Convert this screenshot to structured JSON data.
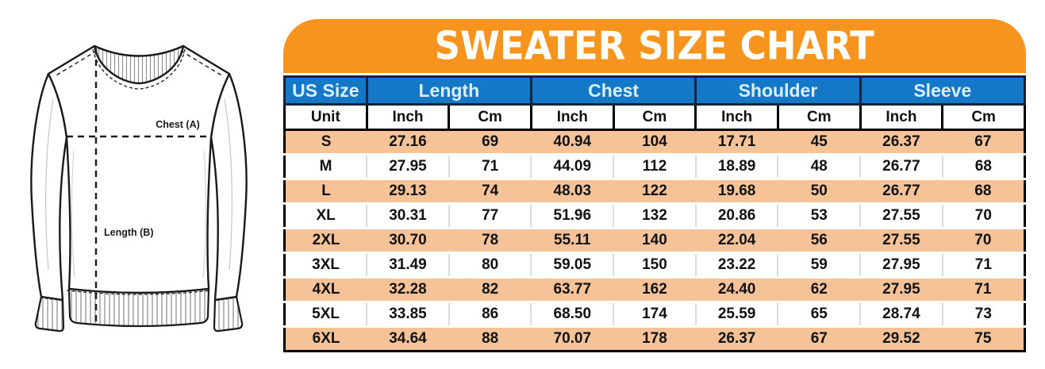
{
  "title": "SWEATER SIZE CHART",
  "diagram": {
    "chest_label": "Chest (A)",
    "length_label": "Length (B)"
  },
  "table": {
    "header_groups": [
      {
        "label": "US Size",
        "span": 1
      },
      {
        "label": "Length",
        "span": 2
      },
      {
        "label": "Chest",
        "span": 2
      },
      {
        "label": "Shoulder",
        "span": 2
      },
      {
        "label": "Sleeve",
        "span": 2
      }
    ],
    "unit_row": [
      "Unit",
      "Inch",
      "Cm",
      "Inch",
      "Cm",
      "Inch",
      "Cm",
      "Inch",
      "Cm"
    ],
    "rows": [
      {
        "size": "S",
        "values": [
          "27.16",
          "69",
          "40.94",
          "104",
          "17.71",
          "45",
          "26.37",
          "67"
        ]
      },
      {
        "size": "M",
        "values": [
          "27.95",
          "71",
          "44.09",
          "112",
          "18.89",
          "48",
          "26.77",
          "68"
        ]
      },
      {
        "size": "L",
        "values": [
          "29.13",
          "74",
          "48.03",
          "122",
          "19.68",
          "50",
          "26.77",
          "68"
        ]
      },
      {
        "size": "XL",
        "values": [
          "30.31",
          "77",
          "51.96",
          "132",
          "20.86",
          "53",
          "27.55",
          "70"
        ]
      },
      {
        "size": "2XL",
        "values": [
          "30.70",
          "78",
          "55.11",
          "140",
          "22.04",
          "56",
          "27.55",
          "70"
        ]
      },
      {
        "size": "3XL",
        "values": [
          "31.49",
          "80",
          "59.05",
          "150",
          "23.22",
          "59",
          "27.95",
          "71"
        ]
      },
      {
        "size": "4XL",
        "values": [
          "32.28",
          "82",
          "63.77",
          "162",
          "24.40",
          "62",
          "27.95",
          "71"
        ]
      },
      {
        "size": "5XL",
        "values": [
          "33.85",
          "86",
          "68.50",
          "174",
          "25.59",
          "65",
          "28.74",
          "73"
        ]
      },
      {
        "size": "6XL",
        "values": [
          "34.64",
          "88",
          "70.07",
          "178",
          "26.37",
          "67",
          "29.52",
          "75"
        ]
      }
    ]
  },
  "chart_data": {
    "type": "table",
    "title": "SWEATER SIZE CHART",
    "columns": [
      "US Size",
      "Length (Inch)",
      "Length (Cm)",
      "Chest (Inch)",
      "Chest (Cm)",
      "Shoulder (Inch)",
      "Shoulder (Cm)",
      "Sleeve (Inch)",
      "Sleeve (Cm)"
    ],
    "rows": [
      [
        "S",
        27.16,
        69,
        40.94,
        104,
        17.71,
        45,
        26.37,
        67
      ],
      [
        "M",
        27.95,
        71,
        44.09,
        112,
        18.89,
        48,
        26.77,
        68
      ],
      [
        "L",
        29.13,
        74,
        48.03,
        122,
        19.68,
        50,
        26.77,
        68
      ],
      [
        "XL",
        30.31,
        77,
        51.96,
        132,
        20.86,
        53,
        27.55,
        70
      ],
      [
        "2XL",
        30.7,
        78,
        55.11,
        140,
        22.04,
        56,
        27.55,
        70
      ],
      [
        "3XL",
        31.49,
        80,
        59.05,
        150,
        23.22,
        59,
        27.95,
        71
      ],
      [
        "4XL",
        32.28,
        82,
        63.77,
        162,
        24.4,
        62,
        27.95,
        71
      ],
      [
        "5XL",
        33.85,
        86,
        68.5,
        174,
        25.59,
        65,
        28.74,
        73
      ],
      [
        "6XL",
        34.64,
        88,
        70.07,
        178,
        26.37,
        67,
        29.52,
        75
      ]
    ],
    "row_striping": "odd rows peach, even rows white",
    "legend_position": "none",
    "grid": true
  },
  "colors": {
    "banner_orange": "#F7941E",
    "header_blue": "#1478C6",
    "header_border_navy": "#17233E",
    "row_peach": "#F6C399",
    "header_text": "#D9EFFC",
    "text_dark": "#111111"
  }
}
